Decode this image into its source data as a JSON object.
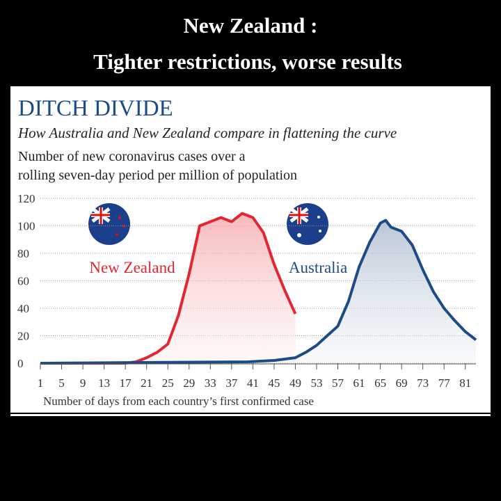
{
  "header": {
    "title": [
      "New Zealand :",
      "Tighter restrictions, worse results"
    ]
  },
  "chart_data": {
    "type": "area",
    "title": "DITCH DIVIDE",
    "subtitle": "How Australia and New Zealand compare in flattening the curve",
    "ylabel": [
      "Number of new coronavirus cases over a",
      "rolling seven-day period per million of population"
    ],
    "xlabel": "Number of days from each country’s first confirmed case",
    "xlim": [
      1,
      83
    ],
    "ylim": [
      0,
      120
    ],
    "xticks": [
      1,
      5,
      9,
      13,
      17,
      21,
      25,
      29,
      33,
      37,
      41,
      45,
      49,
      53,
      57,
      61,
      65,
      69,
      73,
      77,
      81
    ],
    "yticks": [
      0,
      20,
      40,
      60,
      80,
      100,
      120
    ],
    "grid": true,
    "series": [
      {
        "name": "New Zealand",
        "color": "#e3262f",
        "x": [
          1,
          17,
          19,
          21,
          23,
          25,
          27,
          29,
          31,
          33,
          35,
          37,
          39,
          41,
          43,
          45,
          47,
          49
        ],
        "values": [
          0,
          0,
          1,
          4,
          8,
          14,
          35,
          65,
          100,
          103,
          106,
          103,
          109,
          106,
          95,
          72,
          53,
          36
        ]
      },
      {
        "name": "Australia",
        "color": "#1d4b86",
        "x": [
          1,
          40,
          45,
          49,
          51,
          53,
          55,
          57,
          59,
          61,
          63,
          65,
          66,
          67,
          69,
          71,
          73,
          75,
          77,
          79,
          81,
          83
        ],
        "values": [
          0,
          1,
          2,
          4,
          8,
          13,
          20,
          27,
          45,
          70,
          88,
          102,
          104,
          99,
          96,
          86,
          68,
          52,
          40,
          31,
          23,
          17
        ]
      }
    ]
  }
}
